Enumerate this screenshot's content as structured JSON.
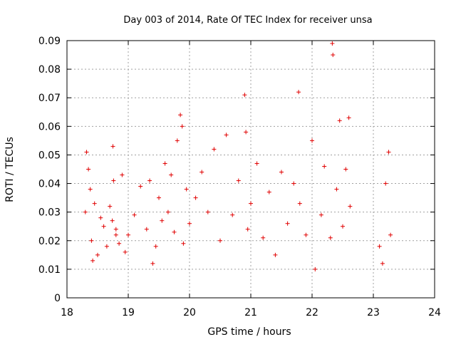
{
  "chart_data": {
    "type": "scatter",
    "title": "Day 003 of 2014, Rate Of TEC Index for receiver unsa",
    "xlabel": "GPS time / hours",
    "ylabel": "ROTI / TECUs",
    "xlim": [
      18,
      24
    ],
    "ylim": [
      0,
      0.09
    ],
    "xticks": [
      18,
      19,
      20,
      21,
      22,
      23,
      24
    ],
    "yticks": [
      0,
      0.01,
      0.02,
      0.03,
      0.04,
      0.05,
      0.06,
      0.07,
      0.08,
      0.09
    ],
    "xtick_labels": [
      "18",
      "19",
      "20",
      "21",
      "22",
      "23",
      "24"
    ],
    "ytick_labels": [
      "0",
      "0.01",
      "0.02",
      "0.03",
      "0.04",
      "0.05",
      "0.06",
      "0.07",
      "0.08",
      "0.09"
    ],
    "grid": true,
    "marker": "plus",
    "series_color": "#e00000",
    "series": [
      {
        "name": "ROTI",
        "x": [
          18.3,
          18.35,
          18.32,
          18.4,
          18.45,
          18.5,
          18.55,
          18.6,
          18.65,
          18.7,
          18.75,
          18.8,
          18.85,
          18.9,
          18.74,
          18.76,
          18.8,
          18.38,
          18.42,
          18.95,
          19.0,
          19.1,
          19.2,
          19.3,
          19.35,
          19.4,
          19.45,
          19.5,
          19.55,
          19.6,
          19.65,
          19.7,
          19.75,
          19.8,
          19.85,
          19.88,
          19.9,
          19.95,
          20.0,
          20.1,
          20.2,
          20.3,
          20.4,
          20.5,
          20.6,
          20.7,
          20.8,
          20.9,
          20.92,
          20.95,
          21.0,
          21.1,
          21.2,
          21.3,
          21.4,
          21.5,
          21.6,
          21.7,
          21.78,
          21.8,
          21.9,
          22.0,
          22.05,
          22.15,
          22.2,
          22.3,
          22.33,
          22.34,
          22.4,
          22.45,
          22.5,
          22.55,
          22.6,
          22.62,
          23.1,
          23.15,
          23.2,
          23.25,
          23.28
        ],
        "y": [
          0.03,
          0.045,
          0.051,
          0.02,
          0.033,
          0.015,
          0.028,
          0.025,
          0.018,
          0.032,
          0.053,
          0.024,
          0.019,
          0.043,
          0.027,
          0.041,
          0.022,
          0.038,
          0.013,
          0.016,
          0.022,
          0.029,
          0.039,
          0.024,
          0.041,
          0.012,
          0.018,
          0.035,
          0.027,
          0.047,
          0.03,
          0.043,
          0.023,
          0.055,
          0.064,
          0.06,
          0.019,
          0.038,
          0.026,
          0.035,
          0.044,
          0.03,
          0.052,
          0.02,
          0.057,
          0.029,
          0.041,
          0.071,
          0.058,
          0.024,
          0.033,
          0.047,
          0.021,
          0.037,
          0.015,
          0.044,
          0.026,
          0.04,
          0.072,
          0.033,
          0.022,
          0.055,
          0.01,
          0.029,
          0.046,
          0.021,
          0.089,
          0.085,
          0.038,
          0.062,
          0.025,
          0.045,
          0.063,
          0.032,
          0.018,
          0.012,
          0.04,
          0.051,
          0.022
        ]
      }
    ]
  }
}
